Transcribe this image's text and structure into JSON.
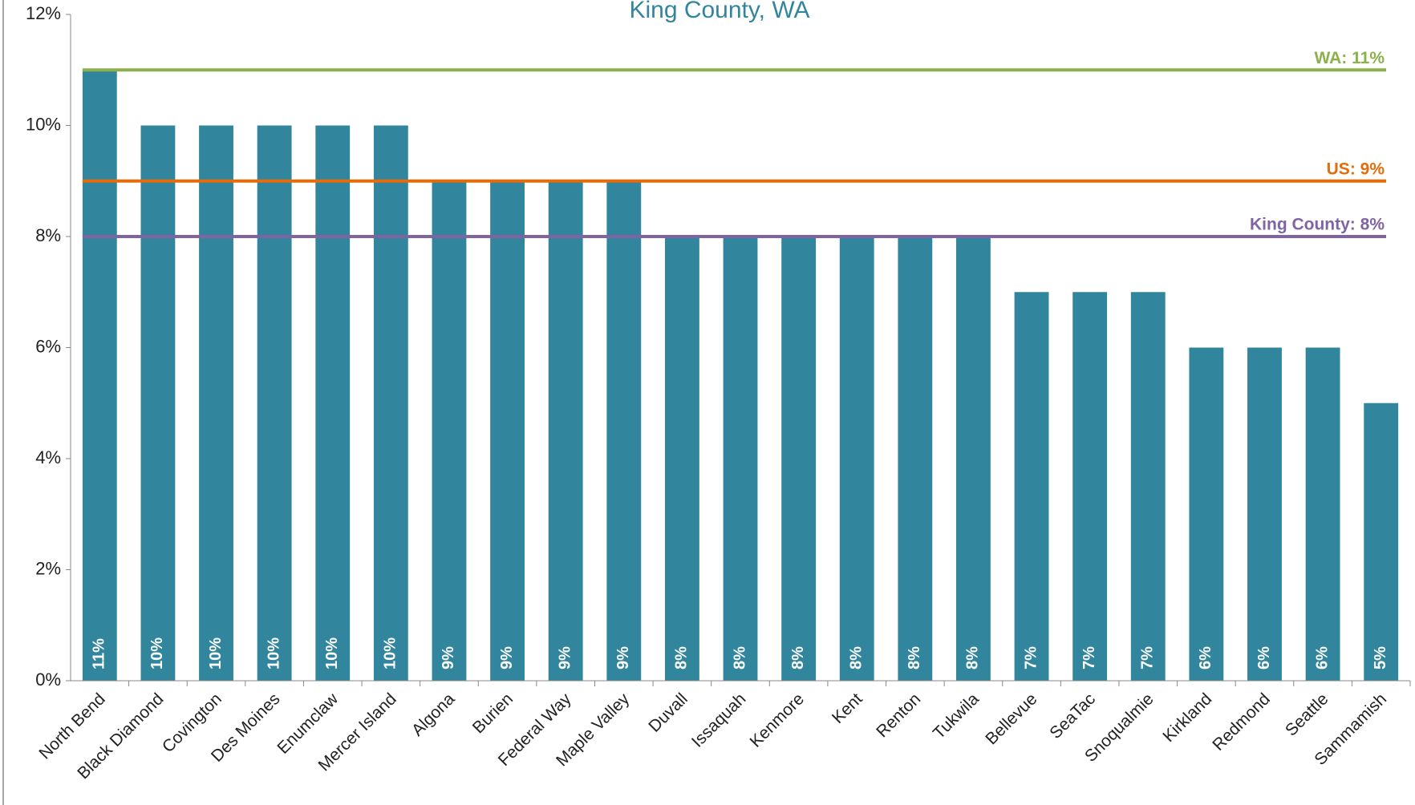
{
  "chart_data": {
    "type": "bar",
    "title": "King County, WA",
    "categories": [
      "North Bend",
      "Black Diamond",
      "Covington",
      "Des Moines",
      "Enumclaw",
      "Mercer Island",
      "Algona",
      "Burien",
      "Federal Way",
      "Maple Valley",
      "Duvall",
      "Issaquah",
      "Kenmore",
      "Kent",
      "Renton",
      "Tukwila",
      "Bellevue",
      "SeaTac",
      "Snoqualmie",
      "Kirkland",
      "Redmond",
      "Seattle",
      "Sammamish"
    ],
    "values": [
      11,
      10,
      10,
      10,
      10,
      10,
      9,
      9,
      9,
      9,
      8,
      8,
      8,
      8,
      8,
      8,
      7,
      7,
      7,
      6,
      6,
      6,
      5
    ],
    "value_labels": [
      "11%",
      "10%",
      "10%",
      "10%",
      "10%",
      "10%",
      "9%",
      "9%",
      "9%",
      "9%",
      "8%",
      "8%",
      "8%",
      "8%",
      "8%",
      "8%",
      "7%",
      "7%",
      "7%",
      "6%",
      "6%",
      "6%",
      "5%"
    ],
    "color": "#31859c",
    "ylim": [
      0,
      12
    ],
    "yticks": [
      {
        "value": 0,
        "label": "0%"
      },
      {
        "value": 2,
        "label": "2%"
      },
      {
        "value": 4,
        "label": "4%"
      },
      {
        "value": 6,
        "label": "6%"
      },
      {
        "value": 8,
        "label": "8%"
      },
      {
        "value": 10,
        "label": "10%"
      },
      {
        "value": 12,
        "label": "12%"
      }
    ],
    "reference_lines": [
      {
        "label": "WA: 11%",
        "value": 11,
        "color": "#8db04a"
      },
      {
        "label": "US: 9%",
        "value": 9,
        "color": "#e46c0a"
      },
      {
        "label": "King County: 8%",
        "value": 8,
        "color": "#8064a2"
      }
    ]
  }
}
